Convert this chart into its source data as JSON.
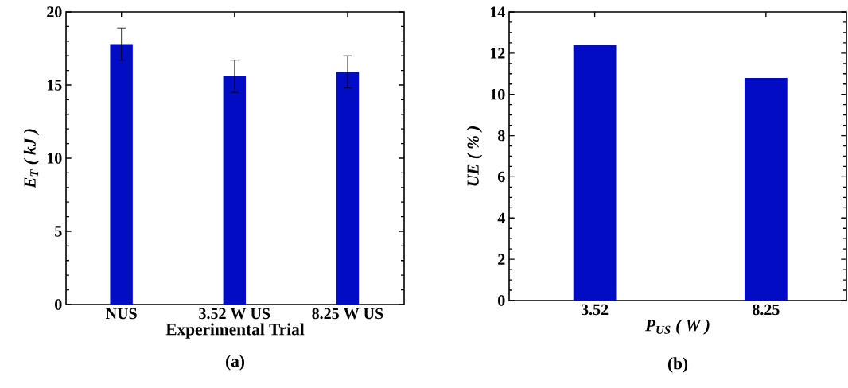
{
  "chart_data": [
    {
      "type": "bar",
      "categories": [
        "NUS",
        "3.52 W US",
        "8.25 W US"
      ],
      "values": [
        17.8,
        15.6,
        15.9
      ],
      "errors": [
        1.1,
        1.1,
        1.1
      ],
      "color": "#020cc4",
      "xlabel": "Experimental Trial",
      "ylabel": "E$_{T}$ ( kJ )",
      "ylim": [
        0,
        20
      ],
      "yticks": [
        0,
        5,
        10,
        15,
        20
      ],
      "annotations": [
        "(a)"
      ]
    },
    {
      "type": "bar",
      "categories": [
        "3.52",
        "8.25"
      ],
      "values": [
        12.4,
        10.8
      ],
      "color": "#020cc4",
      "xlabel": "P$_{US}$ ( W )",
      "ylabel": "UE ( % )",
      "ylim": [
        0,
        14
      ],
      "yticks": [
        0,
        2,
        4,
        6,
        8,
        10,
        12,
        14
      ],
      "annotations": [
        "(b)"
      ]
    }
  ]
}
